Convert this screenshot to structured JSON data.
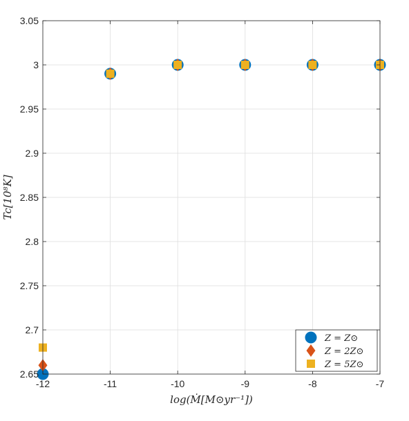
{
  "chart_data": {
    "type": "scatter",
    "title": "",
    "xlabel": "log(Ṁ[M⊙yr⁻¹])",
    "ylabel": "Tc[10⁸K]",
    "xlim": [
      -12,
      -7
    ],
    "ylim": [
      2.65,
      3.05
    ],
    "xticks": [
      -12,
      -11,
      -10,
      -9,
      -8,
      -7
    ],
    "xtick_labels": [
      "-12",
      "-11",
      "-10",
      "-9",
      "-8",
      "-7"
    ],
    "yticks": [
      2.65,
      2.7,
      2.75,
      2.8,
      2.85,
      2.9,
      2.95,
      3.0,
      3.05
    ],
    "ytick_labels": [
      "2.65",
      "2.7",
      "2.75",
      "2.8",
      "2.85",
      "2.9",
      "2.95",
      "3",
      "3.05"
    ],
    "grid": true,
    "legend_position": "bottom-right",
    "series": [
      {
        "name": "Z = Z⊙",
        "marker": "circle",
        "color": "#0072BD",
        "x": [
          -12,
          -11,
          -10,
          -9,
          -8,
          -7
        ],
        "y": [
          2.65,
          2.99,
          3.0,
          3.0,
          3.0,
          3.0
        ]
      },
      {
        "name": "Z = 2Z⊙",
        "marker": "diamond",
        "color": "#D95319",
        "x": [
          -12,
          -11,
          -10,
          -9,
          -8,
          -7
        ],
        "y": [
          2.66,
          2.99,
          3.0,
          3.0,
          3.0,
          3.0
        ]
      },
      {
        "name": "Z = 5Z⊙",
        "marker": "square",
        "color": "#EDB120",
        "x": [
          -12,
          -11,
          -10,
          -9,
          -8,
          -7
        ],
        "y": [
          2.68,
          2.99,
          3.0,
          3.0,
          3.0,
          3.0
        ]
      }
    ]
  }
}
